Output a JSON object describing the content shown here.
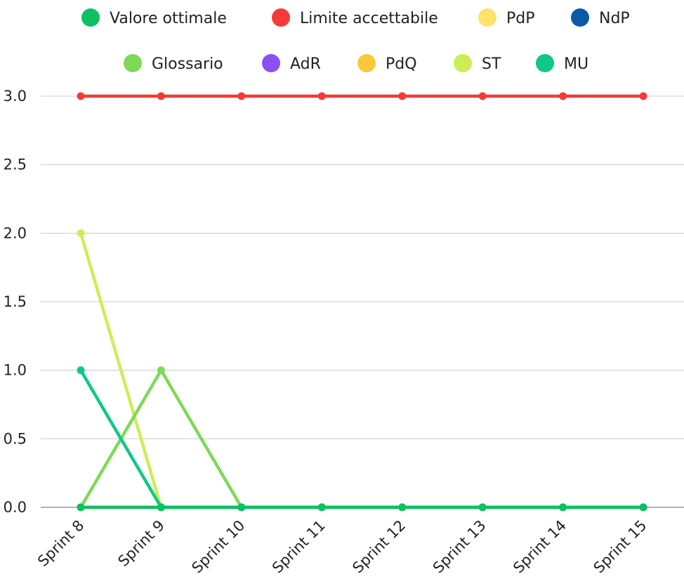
{
  "chart_data": {
    "type": "line",
    "title": "",
    "xlabel": "",
    "ylabel": "",
    "categories": [
      "Sprint 8",
      "Sprint 9",
      "Sprint 10",
      "Sprint 11",
      "Sprint 12",
      "Sprint 13",
      "Sprint 14",
      "Sprint 15"
    ],
    "ylim": [
      0,
      3
    ],
    "yticks": [
      "0.0",
      "0.5",
      "1.0",
      "1.5",
      "2.0",
      "2.5",
      "3.0"
    ],
    "ytick_values": [
      0,
      0.5,
      1,
      1.5,
      2,
      2.5,
      3
    ],
    "grid": true,
    "legend_position": "top",
    "series": [
      {
        "name": "Valore ottimale",
        "color": "#0fbf63",
        "values": [
          0,
          0,
          0,
          0,
          0,
          0,
          0,
          0
        ]
      },
      {
        "name": "Limite accettabile",
        "color": "#f53a3a",
        "values": [
          3,
          3,
          3,
          3,
          3,
          3,
          3,
          3
        ]
      },
      {
        "name": "PdP",
        "color": "#fde36b",
        "values": [
          0,
          0,
          0,
          0,
          0,
          0,
          0,
          0
        ]
      },
      {
        "name": "NdP",
        "color": "#0b5aa6",
        "values": [
          0,
          0,
          0,
          0,
          0,
          0,
          0,
          0
        ]
      },
      {
        "name": "Glossario",
        "color": "#7fd858",
        "values": [
          0,
          1,
          0,
          0,
          0,
          0,
          0,
          0
        ]
      },
      {
        "name": "AdR",
        "color": "#8b4ff5",
        "values": [
          0,
          0,
          0,
          0,
          0,
          0,
          0,
          0
        ]
      },
      {
        "name": "PdQ",
        "color": "#fdc93c",
        "values": [
          0,
          0,
          0,
          0,
          0,
          0,
          0,
          0
        ]
      },
      {
        "name": "ST",
        "color": "#ccee55",
        "values": [
          2,
          0,
          0,
          0,
          0,
          0,
          0,
          0
        ]
      },
      {
        "name": "MU",
        "color": "#0fc888",
        "values": [
          1,
          0,
          0,
          0,
          0,
          0,
          0,
          0
        ]
      }
    ]
  }
}
